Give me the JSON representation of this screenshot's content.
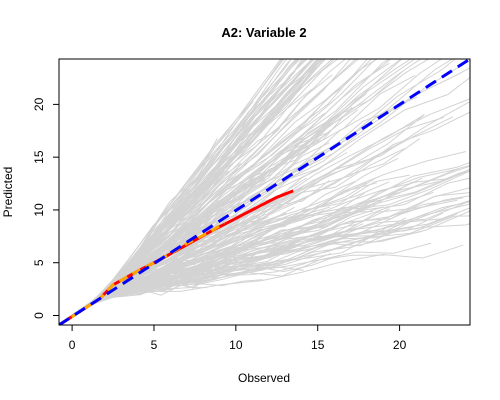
{
  "chart_data": {
    "type": "line",
    "title": "A2: Variable 2",
    "xlabel": "Observed",
    "ylabel": "Predicted",
    "xlim": [
      -0.8,
      24.3
    ],
    "ylim": [
      -0.9,
      24.3
    ],
    "x_ticks": [
      0,
      5,
      10,
      15,
      20
    ],
    "y_ticks": [
      0,
      5,
      10,
      15,
      20
    ],
    "grid": false,
    "legend": "none",
    "colors": {
      "background_lines": "#d3d3d3",
      "observed_fit": "#ff0000",
      "predicted_fit": "#ffa500",
      "identity": "#0000ff"
    },
    "series": [
      {
        "role": "fitted-red",
        "style": "solid",
        "x": [
          -0.8,
          1.7,
          2.5,
          4,
          5.5,
          7,
          8.5,
          10,
          11.5,
          12.5,
          13.5
        ],
        "y": [
          -0.9,
          1.6,
          2.9,
          4.2,
          5.4,
          6.7,
          8.0,
          9.2,
          10.4,
          11.2,
          11.8
        ]
      },
      {
        "role": "fitted-orange",
        "style": "dashed",
        "x": [
          -0.8,
          1.7,
          2.5,
          4,
          5.5,
          7,
          8.5,
          9.3
        ],
        "y": [
          -0.9,
          1.6,
          2.9,
          4.2,
          5.4,
          6.8,
          8.0,
          8.8
        ]
      },
      {
        "role": "identity-line",
        "style": "dashed",
        "x": [
          -0.8,
          24.3
        ],
        "y": [
          -0.9,
          24.3
        ]
      }
    ],
    "background_lines_count": 220
  }
}
